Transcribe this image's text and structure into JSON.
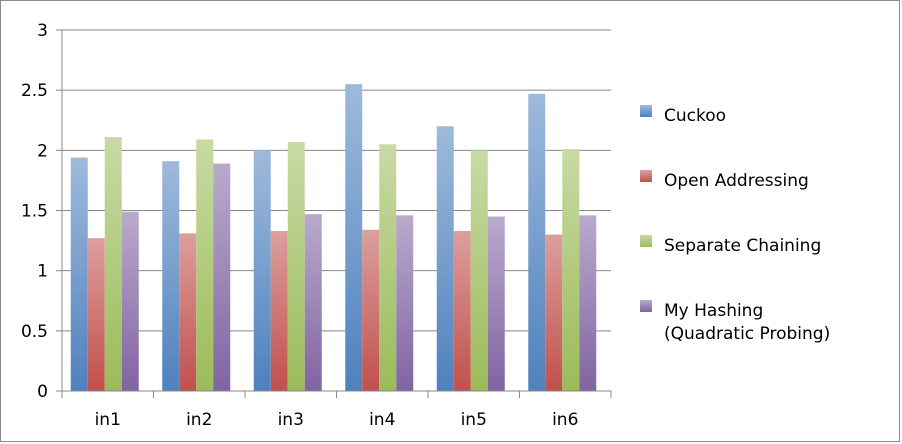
{
  "chart_data": {
    "type": "bar",
    "categories": [
      "in1",
      "in2",
      "in3",
      "in4",
      "in5",
      "in6"
    ],
    "series": [
      {
        "name": "Cuckoo",
        "values": [
          1.94,
          1.91,
          2.0,
          2.55,
          2.2,
          2.47
        ],
        "color": "#4f81bd"
      },
      {
        "name": "Open Addressing",
        "values": [
          1.27,
          1.31,
          1.33,
          1.34,
          1.33,
          1.3
        ],
        "color": "#c0504d"
      },
      {
        "name": "Separate Chaining",
        "values": [
          2.11,
          2.09,
          2.07,
          2.05,
          2.0,
          2.01
        ],
        "color": "#9bbb59"
      },
      {
        "name": "My Hashing  (Quadratic Probing)",
        "values": [
          1.49,
          1.89,
          1.47,
          1.46,
          1.45,
          1.46
        ],
        "color": "#8064a2"
      }
    ],
    "y_ticks": [
      "0",
      "0.5",
      "1",
      "1.5",
      "2",
      "2.5",
      "3"
    ],
    "ylim": [
      0,
      3
    ],
    "grid": true,
    "legend_position": "right"
  }
}
